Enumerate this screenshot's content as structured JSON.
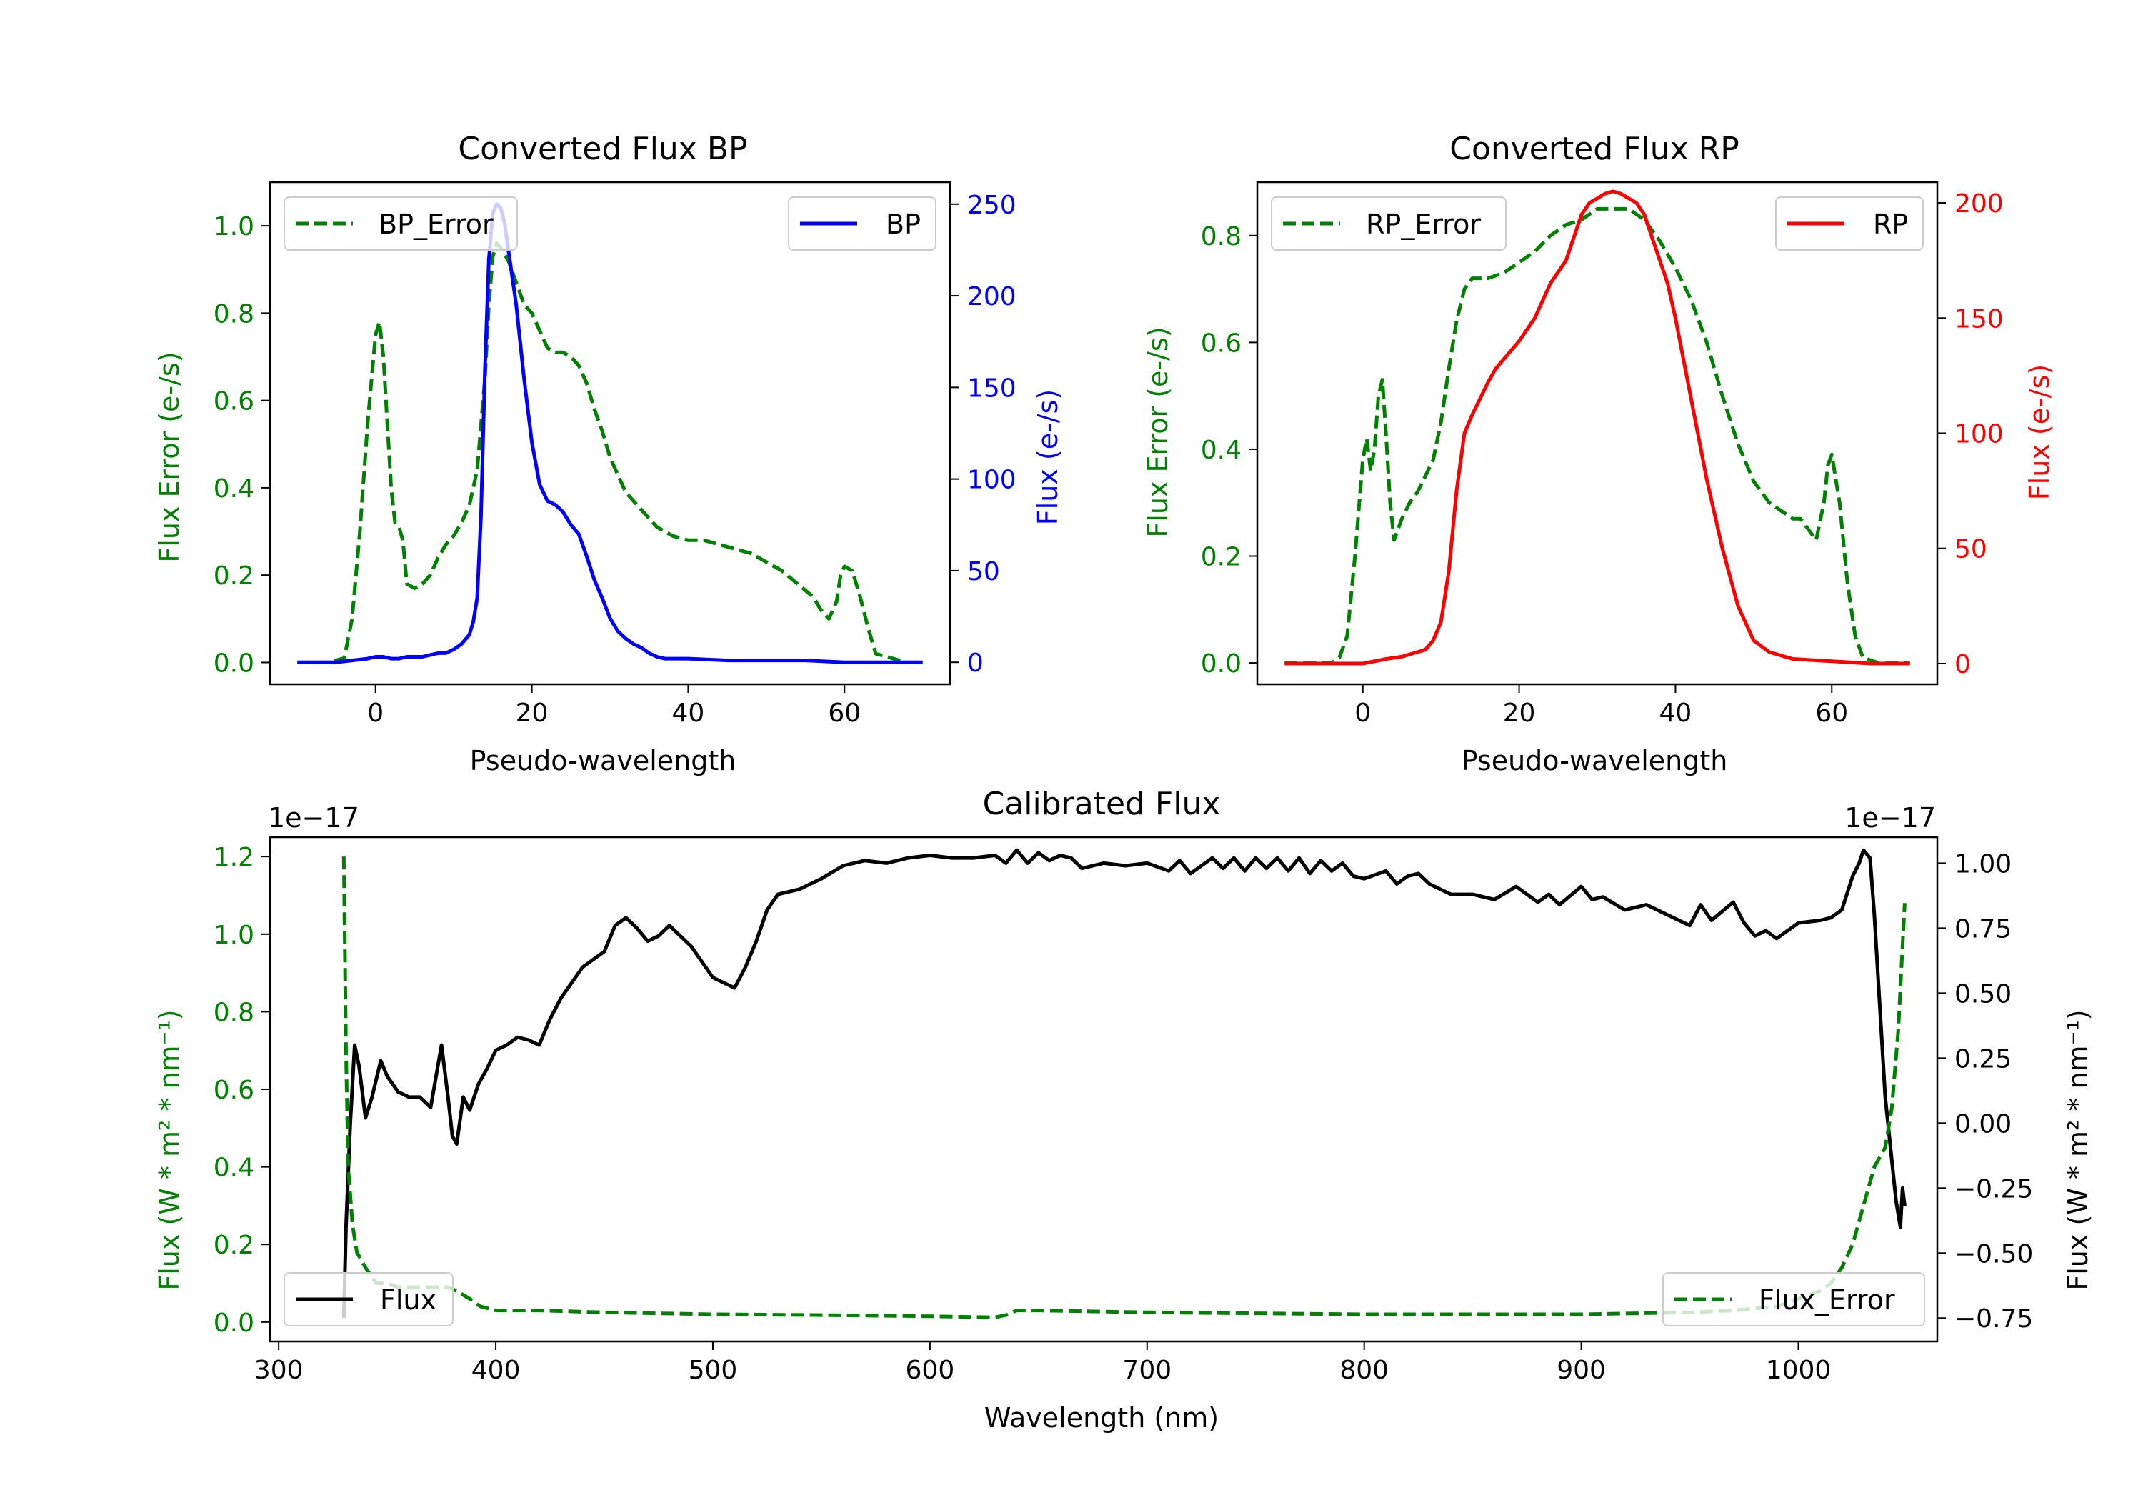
{
  "colors": {
    "green": "#008000",
    "blue": "#0000ff",
    "red": "#ff0000",
    "black": "#000000"
  },
  "chart_data": [
    {
      "type": "line",
      "title": "Converted Flux BP",
      "xlabel": "Pseudo-wavelength",
      "ylabel_left": "Flux Error (e-/s)",
      "ylabel_right": "Flux (e-/s)",
      "xlim": [
        -13.5,
        73.5
      ],
      "ylim_left": [
        -0.05,
        1.1
      ],
      "ylim_right": [
        -12,
        262
      ],
      "xticks": [
        0,
        20,
        40,
        60
      ],
      "yticks_left": [
        0.0,
        0.2,
        0.4,
        0.6,
        0.8,
        1.0
      ],
      "yticks_right": [
        0,
        50,
        100,
        150,
        200,
        250
      ],
      "legend_left": {
        "label": "BP_Error",
        "placement": "upper-left"
      },
      "legend_right": {
        "label": "BP",
        "placement": "upper-right"
      },
      "series": [
        {
          "name": "BP_Error",
          "axis": "left",
          "color": "green",
          "style": "dashed",
          "x": [
            -10,
            -6,
            -4,
            -3,
            -2,
            -1,
            0,
            0.5,
            1,
            2,
            2.5,
            3,
            3.5,
            4,
            5,
            6,
            7,
            8,
            9,
            10,
            11,
            12,
            13,
            14,
            14.5,
            15,
            15.5,
            16,
            17,
            18,
            19,
            20,
            21,
            22,
            23,
            24,
            25,
            26,
            27,
            28,
            29,
            30,
            31,
            32,
            33,
            34,
            35,
            36,
            37,
            38,
            40,
            42,
            44,
            46,
            48,
            50,
            52,
            54,
            56,
            57,
            58,
            59,
            59.5,
            60,
            61,
            62,
            63,
            64,
            66,
            68,
            70
          ],
          "y": [
            0,
            0,
            0.01,
            0.1,
            0.3,
            0.55,
            0.75,
            0.78,
            0.7,
            0.4,
            0.32,
            0.31,
            0.28,
            0.18,
            0.17,
            0.18,
            0.2,
            0.24,
            0.27,
            0.29,
            0.32,
            0.36,
            0.44,
            0.65,
            0.82,
            0.93,
            0.96,
            0.95,
            0.92,
            0.87,
            0.82,
            0.8,
            0.76,
            0.72,
            0.71,
            0.71,
            0.7,
            0.68,
            0.64,
            0.58,
            0.53,
            0.47,
            0.43,
            0.39,
            0.37,
            0.35,
            0.33,
            0.31,
            0.3,
            0.29,
            0.28,
            0.28,
            0.27,
            0.26,
            0.25,
            0.23,
            0.21,
            0.18,
            0.15,
            0.12,
            0.1,
            0.14,
            0.2,
            0.22,
            0.21,
            0.15,
            0.08,
            0.02,
            0.01,
            0,
            0
          ]
        },
        {
          "name": "BP",
          "axis": "right",
          "color": "blue",
          "style": "solid",
          "x": [
            -10,
            -5,
            -3,
            -1,
            0,
            1,
            2,
            3,
            4,
            5,
            6,
            7,
            8,
            9,
            10,
            11,
            12,
            12.5,
            13,
            13.5,
            14,
            14.5,
            15,
            15.5,
            16,
            16.5,
            17,
            18,
            19,
            20,
            21,
            22,
            23,
            24,
            25,
            26,
            27,
            28,
            29,
            30,
            31,
            32,
            33,
            34,
            35,
            36,
            37,
            38,
            40,
            45,
            50,
            55,
            60,
            65,
            70
          ],
          "y": [
            0,
            0,
            1,
            2,
            3,
            3,
            2,
            2,
            3,
            3,
            3,
            4,
            5,
            5,
            7,
            10,
            15,
            22,
            35,
            80,
            160,
            220,
            245,
            250,
            248,
            240,
            225,
            195,
            155,
            120,
            97,
            88,
            86,
            82,
            75,
            70,
            58,
            45,
            35,
            24,
            17,
            13,
            10,
            8,
            5,
            3,
            2,
            2,
            2,
            1,
            1,
            1,
            0,
            0,
            0
          ]
        }
      ]
    },
    {
      "type": "line",
      "title": "Converted Flux RP",
      "xlabel": "Pseudo-wavelength",
      "ylabel_left": "Flux Error (e-/s)",
      "ylabel_right": "Flux (e-/s)",
      "xlim": [
        -13.5,
        73.5
      ],
      "ylim_left": [
        -0.04,
        0.9
      ],
      "ylim_right": [
        -9,
        209
      ],
      "xticks": [
        0,
        20,
        40,
        60
      ],
      "yticks_left": [
        0.0,
        0.2,
        0.4,
        0.6,
        0.8
      ],
      "yticks_right": [
        0,
        50,
        100,
        150,
        200
      ],
      "legend_left": {
        "label": "RP_Error",
        "placement": "upper-left"
      },
      "legend_right": {
        "label": "RP",
        "placement": "upper-right"
      },
      "series": [
        {
          "name": "RP_Error",
          "axis": "left",
          "color": "green",
          "style": "dashed",
          "x": [
            -10,
            -4,
            -3,
            -2,
            -1,
            0,
            0.5,
            1,
            1.5,
            2,
            2.5,
            3,
            3.5,
            4,
            5,
            6,
            7,
            8,
            9,
            10,
            11,
            12,
            13,
            14,
            15,
            16,
            18,
            20,
            22,
            24,
            26,
            28,
            30,
            32,
            34,
            36,
            38,
            40,
            42,
            44,
            46,
            48,
            50,
            52,
            54,
            55,
            56,
            57,
            58,
            59,
            59.5,
            60,
            61,
            62,
            63,
            64,
            66,
            70
          ],
          "y": [
            0,
            0,
            0.01,
            0.05,
            0.2,
            0.38,
            0.42,
            0.36,
            0.4,
            0.5,
            0.53,
            0.42,
            0.3,
            0.23,
            0.27,
            0.3,
            0.32,
            0.35,
            0.38,
            0.45,
            0.55,
            0.64,
            0.7,
            0.72,
            0.72,
            0.72,
            0.73,
            0.75,
            0.77,
            0.8,
            0.82,
            0.83,
            0.85,
            0.85,
            0.85,
            0.83,
            0.79,
            0.74,
            0.68,
            0.6,
            0.5,
            0.41,
            0.34,
            0.3,
            0.28,
            0.27,
            0.27,
            0.25,
            0.23,
            0.3,
            0.37,
            0.39,
            0.3,
            0.15,
            0.05,
            0.01,
            0,
            0
          ]
        },
        {
          "name": "RP",
          "axis": "right",
          "color": "red",
          "style": "solid",
          "x": [
            -10,
            -5,
            0,
            3,
            5,
            7,
            8,
            9,
            10,
            11,
            12,
            13,
            14,
            15,
            16,
            17,
            18,
            20,
            22,
            24,
            26,
            28,
            29,
            30,
            31,
            32,
            33,
            34,
            35,
            36,
            37,
            38,
            39,
            40,
            42,
            44,
            46,
            48,
            50,
            52,
            55,
            60,
            65,
            70
          ],
          "y": [
            0,
            0,
            0,
            2,
            3,
            5,
            6,
            10,
            18,
            40,
            75,
            100,
            108,
            115,
            122,
            128,
            132,
            140,
            150,
            165,
            175,
            195,
            200,
            202,
            204,
            205,
            204,
            202,
            200,
            195,
            185,
            175,
            165,
            150,
            115,
            80,
            50,
            25,
            10,
            5,
            2,
            1,
            0,
            0
          ]
        }
      ]
    },
    {
      "type": "line",
      "title": "Calibrated Flux",
      "xlabel": "Wavelength (nm)",
      "ylabel_left": "Flux (W * m² * nm⁻¹)",
      "ylabel_right": "Flux (W * m² * nm⁻¹)",
      "offset_left": "1e−17",
      "offset_right": "1e−17",
      "xlim": [
        296,
        1064
      ],
      "ylim_left": [
        -0.05,
        1.25
      ],
      "ylim_right": [
        -0.84,
        1.1
      ],
      "xticks": [
        300,
        400,
        500,
        600,
        700,
        800,
        900,
        1000
      ],
      "yticks_left": [
        0.0,
        0.2,
        0.4,
        0.6,
        0.8,
        1.0,
        1.2
      ],
      "yticks_right": [
        -0.75,
        -0.5,
        -0.25,
        0.0,
        0.25,
        0.5,
        0.75,
        1.0
      ],
      "yticks_right_labels": [
        "−0.75",
        "−0.50",
        "−0.25",
        "0.00",
        "0.25",
        "0.50",
        "0.75",
        "1.00"
      ],
      "legend_left": {
        "label": "Flux",
        "placement": "lower-left"
      },
      "legend_right": {
        "label": "Flux_Error",
        "placement": "lower-right"
      },
      "series": [
        {
          "name": "Flux",
          "axis": "right",
          "color": "black",
          "style": "solid",
          "x": [
            330,
            331,
            333,
            335,
            337,
            340,
            343,
            347,
            350,
            355,
            360,
            365,
            370,
            375,
            378,
            380,
            382,
            385,
            388,
            392,
            396,
            400,
            405,
            410,
            415,
            420,
            425,
            430,
            440,
            450,
            455,
            460,
            465,
            470,
            475,
            480,
            485,
            490,
            500,
            510,
            515,
            520,
            525,
            530,
            540,
            550,
            560,
            570,
            580,
            590,
            600,
            610,
            620,
            630,
            635,
            640,
            645,
            650,
            655,
            660,
            665,
            670,
            675,
            680,
            690,
            700,
            710,
            715,
            720,
            730,
            735,
            740,
            745,
            750,
            755,
            760,
            765,
            770,
            775,
            780,
            785,
            790,
            795,
            800,
            810,
            815,
            820,
            825,
            830,
            840,
            850,
            860,
            870,
            880,
            885,
            890,
            900,
            905,
            910,
            920,
            925,
            930,
            940,
            950,
            955,
            960,
            970,
            975,
            980,
            985,
            990,
            1000,
            1010,
            1015,
            1020,
            1025,
            1028,
            1030,
            1033,
            1035,
            1040,
            1045,
            1047,
            1048,
            1049
          ],
          "y": [
            -0.75,
            -0.4,
            0.0,
            0.3,
            0.22,
            0.02,
            0.1,
            0.24,
            0.18,
            0.12,
            0.1,
            0.1,
            0.06,
            0.3,
            0.1,
            -0.05,
            -0.08,
            0.1,
            0.05,
            0.15,
            0.21,
            0.28,
            0.3,
            0.33,
            0.32,
            0.3,
            0.4,
            0.48,
            0.6,
            0.66,
            0.76,
            0.79,
            0.75,
            0.7,
            0.72,
            0.76,
            0.72,
            0.68,
            0.56,
            0.52,
            0.6,
            0.7,
            0.82,
            0.88,
            0.9,
            0.94,
            0.99,
            1.01,
            1.0,
            1.02,
            1.03,
            1.02,
            1.02,
            1.03,
            1.0,
            1.05,
            1.0,
            1.04,
            1.01,
            1.03,
            1.02,
            0.98,
            0.99,
            1.0,
            0.99,
            1.0,
            0.97,
            1.01,
            0.96,
            1.02,
            0.98,
            1.02,
            0.97,
            1.02,
            0.98,
            1.02,
            0.97,
            1.02,
            0.96,
            1.01,
            0.97,
            1.0,
            0.95,
            0.94,
            0.97,
            0.92,
            0.95,
            0.96,
            0.92,
            0.88,
            0.88,
            0.86,
            0.91,
            0.85,
            0.88,
            0.84,
            0.91,
            0.86,
            0.87,
            0.82,
            0.83,
            0.84,
            0.8,
            0.76,
            0.84,
            0.78,
            0.85,
            0.77,
            0.72,
            0.74,
            0.71,
            0.77,
            0.78,
            0.79,
            0.82,
            0.95,
            1.0,
            1.05,
            1.02,
            0.8,
            0.1,
            -0.3,
            -0.4,
            -0.25,
            -0.32
          ]
        },
        {
          "name": "Flux_Error",
          "axis": "left",
          "color": "green",
          "style": "dashed",
          "x": [
            330,
            331,
            332,
            334,
            336,
            340,
            345,
            350,
            355,
            360,
            370,
            378,
            382,
            388,
            393,
            400,
            420,
            450,
            500,
            550,
            600,
            630,
            635,
            640,
            650,
            700,
            800,
            850,
            900,
            950,
            970,
            990,
            1000,
            1010,
            1015,
            1020,
            1025,
            1030,
            1035,
            1040,
            1043,
            1046,
            1049
          ],
          "y": [
            1.2,
            0.7,
            0.4,
            0.25,
            0.18,
            0.14,
            0.1,
            0.1,
            0.09,
            0.09,
            0.09,
            0.09,
            0.08,
            0.06,
            0.04,
            0.03,
            0.03,
            0.025,
            0.02,
            0.018,
            0.015,
            0.012,
            0.018,
            0.03,
            0.03,
            0.025,
            0.02,
            0.02,
            0.02,
            0.025,
            0.03,
            0.04,
            0.06,
            0.08,
            0.1,
            0.14,
            0.2,
            0.3,
            0.4,
            0.45,
            0.55,
            0.75,
            1.08
          ]
        }
      ]
    }
  ]
}
